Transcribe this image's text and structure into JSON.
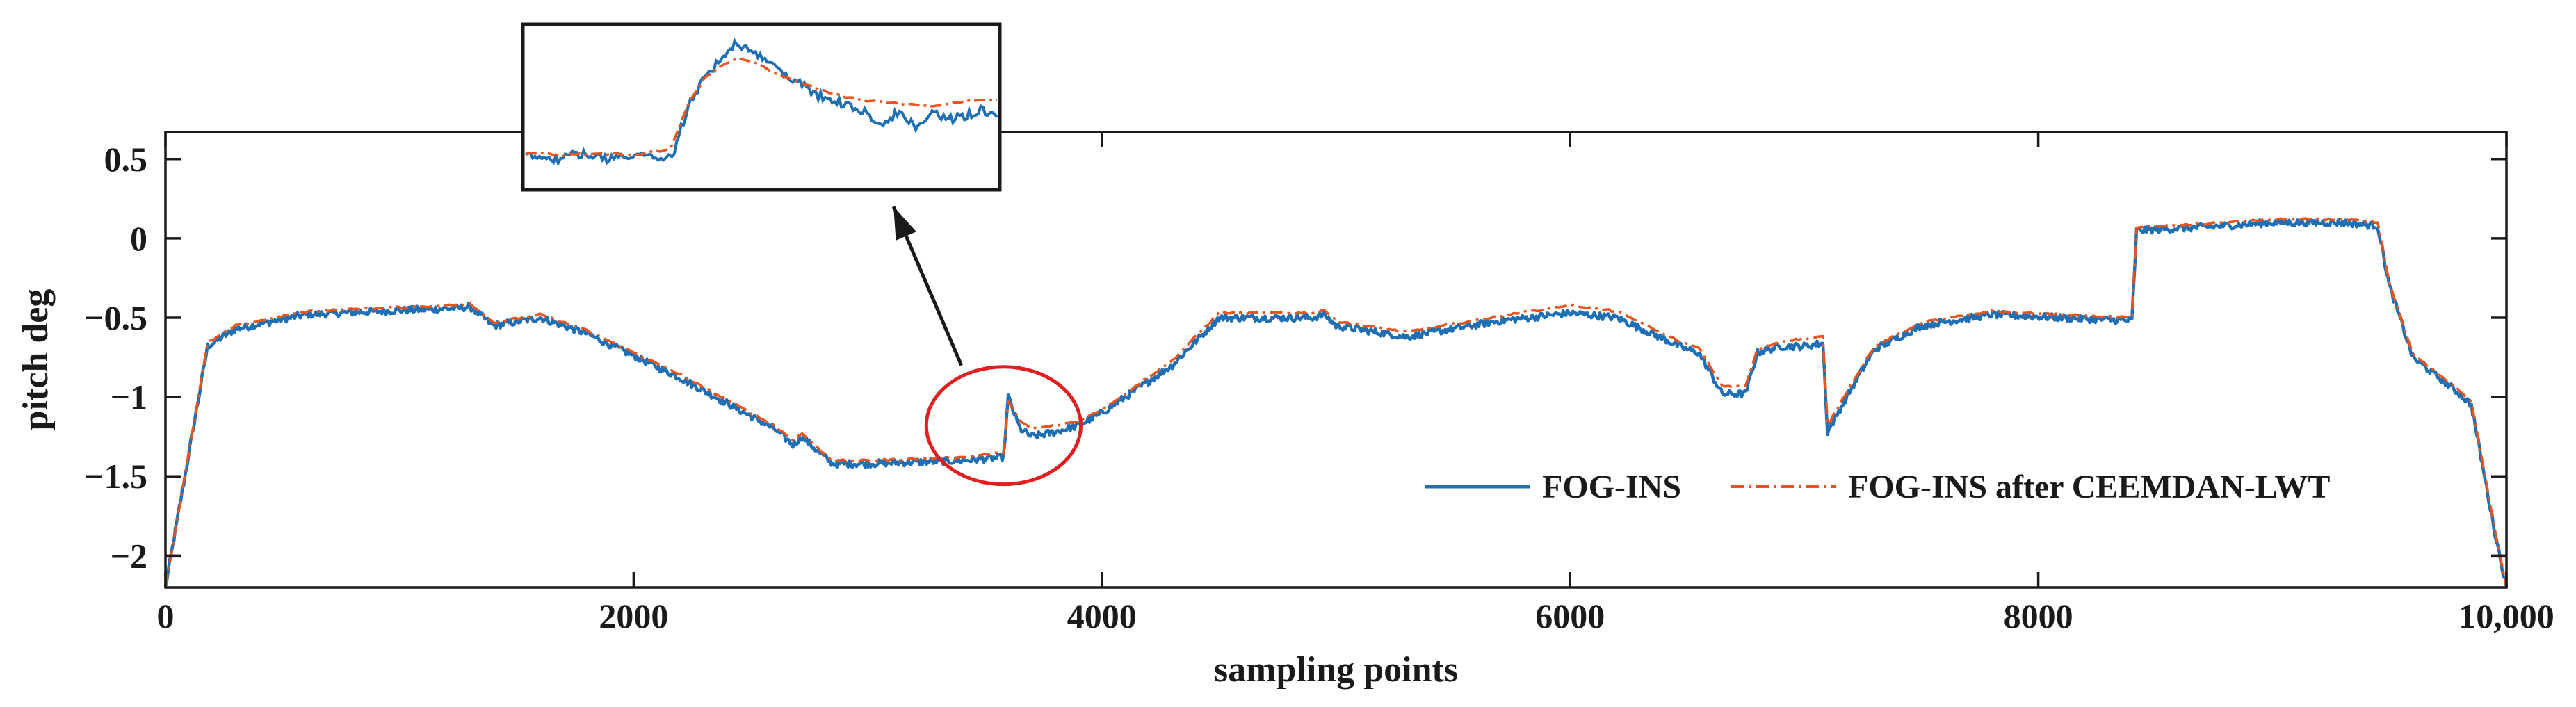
{
  "chart_data": {
    "type": "line",
    "title": "",
    "xlabel": "sampling points",
    "ylabel": "pitch deg",
    "xlim": [
      0,
      10000
    ],
    "ylim": [
      -2.2,
      0.67
    ],
    "xticks": [
      0,
      2000,
      4000,
      6000,
      8000,
      10000
    ],
    "xtick_labels": [
      "0",
      "2000",
      "4000",
      "6000",
      "8000",
      "10,000"
    ],
    "yticks": [
      0.5,
      0,
      -0.5,
      -1,
      -1.5,
      -2
    ],
    "ytick_labels": [
      "0.5",
      "0",
      "−0.5",
      "−1",
      "−1.5",
      "−2"
    ],
    "grid": false,
    "legend_position": "bottom-right",
    "colors": {
      "raw": "#1f6fb5",
      "filtered": "#e8541e",
      "highlight": "#e02020",
      "axis": "#1a1a1a"
    },
    "series": [
      {
        "name": "FOG-INS",
        "style": "solid",
        "color": "#1f6fb5",
        "x": [
          0,
          180,
          300,
          600,
          900,
          1250,
          1300,
          1400,
          1600,
          1800,
          2200,
          2600,
          2680,
          2720,
          2800,
          2850,
          3000,
          3400,
          3580,
          3600,
          3650,
          3700,
          3800,
          3900,
          4000,
          4300,
          4500,
          4900,
          4950,
          5000,
          5300,
          5700,
          6000,
          6200,
          6500,
          6550,
          6650,
          6750,
          6800,
          6900,
          7000,
          7080,
          7100,
          7200,
          7300,
          7500,
          7800,
          8100,
          8400,
          8420,
          8700,
          9000,
          9300,
          9450,
          9500,
          9600,
          9800,
          9850,
          9950,
          10000
        ],
        "y": [
          -2.2,
          -0.68,
          -0.57,
          -0.48,
          -0.46,
          -0.44,
          -0.43,
          -0.55,
          -0.5,
          -0.6,
          -0.88,
          -1.2,
          -1.3,
          -1.25,
          -1.36,
          -1.42,
          -1.42,
          -1.4,
          -1.38,
          -1.0,
          -1.2,
          -1.25,
          -1.22,
          -1.18,
          -1.1,
          -0.8,
          -0.5,
          -0.5,
          -0.48,
          -0.55,
          -0.62,
          -0.52,
          -0.47,
          -0.5,
          -0.7,
          -0.72,
          -0.98,
          -0.98,
          -0.72,
          -0.68,
          -0.68,
          -0.66,
          -1.22,
          -0.95,
          -0.7,
          -0.55,
          -0.48,
          -0.5,
          -0.52,
          0.05,
          0.07,
          0.1,
          0.1,
          0.08,
          -0.3,
          -0.75,
          -0.98,
          -1.05,
          -1.85,
          -2.2
        ]
      },
      {
        "name": "FOG-INS after CEEMDAN-LWT",
        "style": "dash-dot",
        "color": "#e8541e",
        "x": [
          0,
          180,
          300,
          600,
          900,
          1250,
          1300,
          1400,
          1600,
          1800,
          2200,
          2600,
          2680,
          2720,
          2800,
          2850,
          3000,
          3400,
          3580,
          3600,
          3650,
          3700,
          3800,
          3900,
          4000,
          4300,
          4500,
          4900,
          4950,
          5000,
          5300,
          5700,
          6000,
          6200,
          6500,
          6550,
          6650,
          6750,
          6800,
          6900,
          7000,
          7080,
          7100,
          7200,
          7300,
          7500,
          7800,
          8100,
          8400,
          8420,
          8700,
          9000,
          9300,
          9450,
          9500,
          9600,
          9800,
          9850,
          9950,
          10000
        ],
        "y": [
          -2.2,
          -0.66,
          -0.55,
          -0.46,
          -0.44,
          -0.42,
          -0.41,
          -0.53,
          -0.48,
          -0.58,
          -0.86,
          -1.18,
          -1.27,
          -1.23,
          -1.34,
          -1.4,
          -1.4,
          -1.38,
          -1.35,
          -1.03,
          -1.15,
          -1.2,
          -1.18,
          -1.15,
          -1.08,
          -0.77,
          -0.47,
          -0.47,
          -0.45,
          -0.52,
          -0.59,
          -0.49,
          -0.42,
          -0.46,
          -0.67,
          -0.69,
          -0.93,
          -0.93,
          -0.7,
          -0.65,
          -0.63,
          -0.62,
          -1.18,
          -0.92,
          -0.68,
          -0.53,
          -0.46,
          -0.48,
          -0.5,
          0.07,
          0.09,
          0.12,
          0.12,
          0.1,
          -0.28,
          -0.73,
          -0.96,
          -1.03,
          -1.83,
          -2.2
        ]
      }
    ],
    "annotations": [
      {
        "type": "ellipse",
        "label": "zoom region",
        "cx": 3580,
        "cy": -1.18,
        "rx": 330,
        "ry": 0.37
      },
      {
        "type": "arrow",
        "label": "zoom arrow",
        "from": [
          3400,
          -0.8
        ],
        "to": [
          3110,
          0.2
        ]
      },
      {
        "type": "inset",
        "label": "zoomed inset",
        "inset_x": [
          0,
          10,
          20,
          30,
          40,
          50,
          60,
          70,
          80,
          88,
          90,
          100,
          110,
          120,
          130,
          140,
          150,
          160,
          170,
          180,
          190,
          200,
          210,
          220,
          230,
          240,
          250,
          260,
          270,
          280,
          290
        ],
        "inset_y_raw": [
          0.88,
          0.87,
          0.9,
          0.86,
          0.87,
          0.9,
          0.88,
          0.87,
          0.89,
          0.88,
          0.88,
          0.5,
          0.27,
          0.14,
          0.0,
          0.1,
          0.15,
          0.25,
          0.33,
          0.41,
          0.45,
          0.5,
          0.55,
          0.62,
          0.54,
          0.65,
          0.55,
          0.6,
          0.57,
          0.52,
          0.58
        ],
        "inset_y_filtered": [
          0.86,
          0.85,
          0.87,
          0.86,
          0.86,
          0.86,
          0.86,
          0.86,
          0.84,
          0.82,
          0.8,
          0.48,
          0.28,
          0.18,
          0.13,
          0.15,
          0.22,
          0.27,
          0.32,
          0.36,
          0.4,
          0.43,
          0.45,
          0.46,
          0.47,
          0.48,
          0.5,
          0.47,
          0.46,
          0.45,
          0.45
        ]
      }
    ]
  }
}
